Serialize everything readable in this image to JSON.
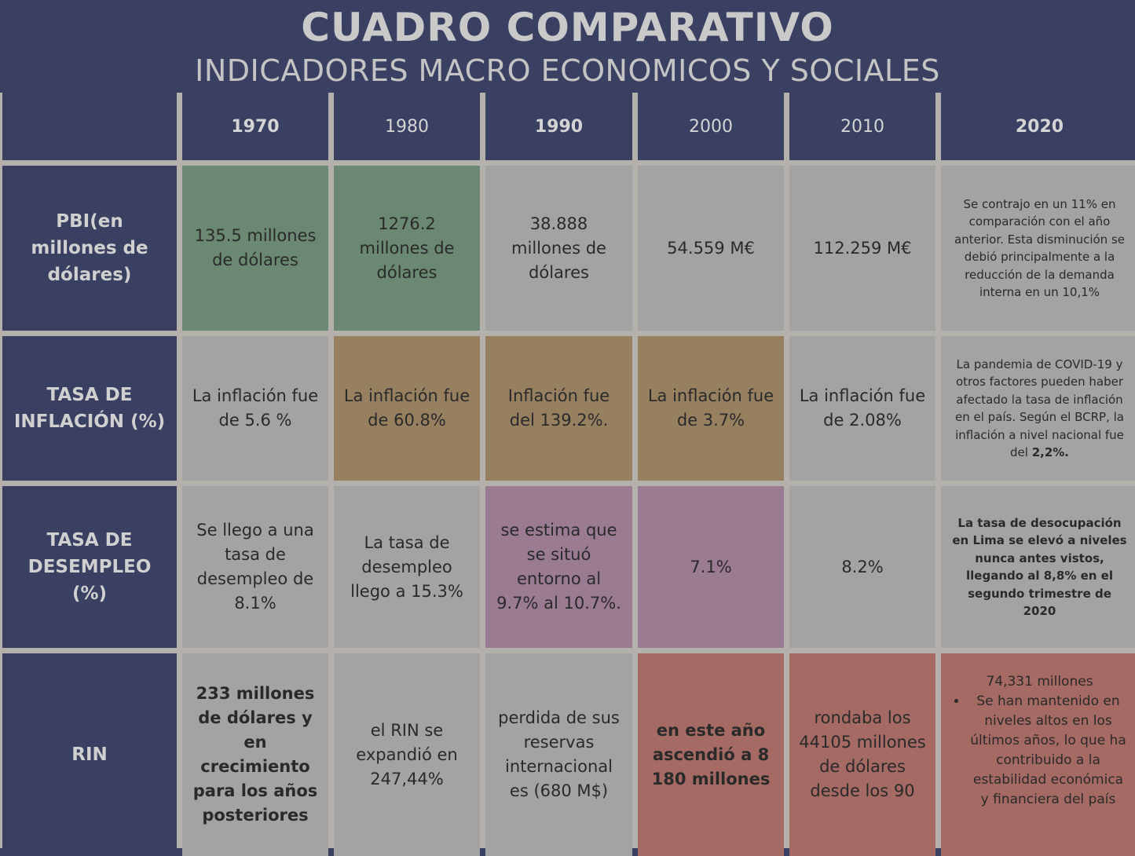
{
  "header": {
    "title": "CUADRO COMPARATIVO",
    "subtitle": "INDICADORES MACRO ECONOMICOS Y SOCIALES"
  },
  "columns": [
    "1970",
    "1980",
    "1990",
    "2000",
    "2010",
    "2020"
  ],
  "rows": {
    "pbi": {
      "label": "PBI(en millones de dólares)",
      "c1970": "135.5 millones de dólares",
      "c1980": "1276.2 millones de dólares",
      "c1990": "38.888 millones de dólares",
      "c2000": "54.559 M€",
      "c2010": "112.259 M€",
      "c2020": "Se contrajo en un 11% en comparación con el año anterior. Esta disminución se debió principalmente a la reducción de la demanda interna en un 10,1%"
    },
    "inflacion": {
      "label": "TASA DE INFLACIÓN (%)",
      "c1970": "La inflación fue de 5.6 %",
      "c1980": "La inflación fue de 60.8%",
      "c1990": "Inflación fue del 139.2%.",
      "c2000": "La inflación fue de 3.7%",
      "c2010": "La inflación fue de 2.08%",
      "c2020_text": "La pandemia de COVID-19 y otros factores pueden haber afectado la tasa de inflación en el país.  Según el BCRP, la inflación a nivel nacional fue del ",
      "c2020_bold": "2,2%."
    },
    "desempleo": {
      "label": "TASA DE DESEMPLEO (%)",
      "c1970": "Se llego a una tasa de desempleo de 8.1%",
      "c1980": "La tasa de desempleo llego a 15.3%",
      "c1990": "se estima que se situó entorno al 9.7% al 10.7%.",
      "c2000": "7.1%",
      "c2010": "8.2%",
      "c2020_a": "La tasa de desocupación en Lima se elevó a niveles nunca antes vistos, llegando al ",
      "c2020_b": "8,8%",
      "c2020_c": " en el segundo trimestre de 2020"
    },
    "rin": {
      "label": "RIN",
      "c1970": "233 millones de dólares y en crecimiento para los años posteriores",
      "c1980": "el RIN se expandió en 247,44%",
      "c1990": "perdida de sus reservas internacional es (680 M$)",
      "c2000": "en este año ascendió a 8 180 millones",
      "c2010": "rondaba los 44105 millones de dólares desde los 90",
      "c2020_head": "74,331 millones",
      "c2020_bullet": "Se han mantenido en niveles altos en los últimos años, lo que ha contribuido a la estabilidad económica y financiera del país"
    }
  },
  "colors": {
    "navy": "#3a4062",
    "gray": "#a3a3a3",
    "green": "#6b8873",
    "tan": "#968060",
    "mauve": "#9a7b92",
    "red": "#a46a63"
  }
}
